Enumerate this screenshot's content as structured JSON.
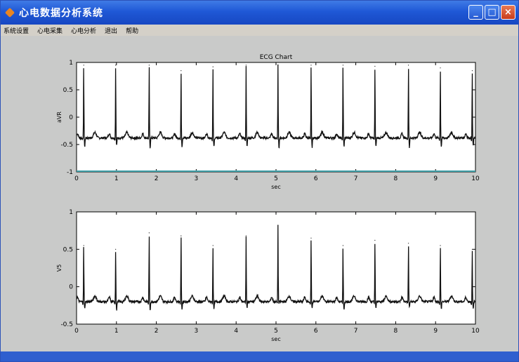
{
  "window": {
    "title": "心电数据分析系统",
    "app_icon": "app-icon",
    "buttons": {
      "minimize": "_",
      "maximize": "□",
      "close": "×"
    }
  },
  "menu": {
    "items": [
      "系统设置",
      "心电采集",
      "心电分析",
      "退出",
      "帮助"
    ]
  },
  "colors": {
    "titlebar": "#1f58d6",
    "window_bg": "#c9cac9",
    "plot_bg": "#ffffff",
    "trace": "#111111",
    "baseline": "#3fa0a8"
  },
  "chart_data": [
    {
      "type": "line",
      "title": "ECG Chart",
      "xlabel": "sec",
      "ylabel": "aVR",
      "xlim": [
        0,
        10
      ],
      "ylim": [
        -1,
        1
      ],
      "xticks": [
        "0",
        "1",
        "2",
        "3",
        "4",
        "5",
        "6",
        "7",
        "8",
        "9",
        "10"
      ],
      "yticks": [
        "1",
        "0.5",
        "0",
        "-0.5",
        "-1"
      ],
      "grid": false,
      "baseline_value": -1,
      "series": [
        {
          "beat_times": [
            0.18,
            0.98,
            1.82,
            2.62,
            3.42,
            4.25,
            5.05,
            5.88,
            6.68,
            7.48,
            8.32,
            9.12,
            9.92
          ],
          "r_peaks": [
            0.95,
            0.95,
            0.95,
            0.85,
            0.92,
            0.95,
            0.95,
            0.95,
            0.95,
            0.93,
            0.95,
            0.9,
            0.85
          ],
          "s_troughs": [
            -0.55,
            -0.52,
            -0.56,
            -0.54,
            -0.55,
            -0.55,
            -0.56,
            -0.55,
            -0.55,
            -0.55,
            -0.56,
            -0.54,
            -0.52
          ],
          "baseline_level": -0.38
        }
      ]
    },
    {
      "type": "line",
      "title": "",
      "xlabel": "sec",
      "ylabel": "V5",
      "xlim": [
        0,
        10
      ],
      "ylim": [
        -0.5,
        1
      ],
      "xticks": [
        "0",
        "1",
        "2",
        "3",
        "4",
        "5",
        "6",
        "7",
        "8",
        "9",
        "10"
      ],
      "yticks": [
        "1",
        "0.5",
        "0",
        "-0.5"
      ],
      "grid": false,
      "series": [
        {
          "beat_times": [
            0.18,
            0.98,
            1.82,
            2.62,
            3.42,
            4.25,
            5.05,
            5.88,
            6.68,
            7.48,
            8.32,
            9.12,
            9.92
          ],
          "r_peaks": [
            0.55,
            0.5,
            0.72,
            0.68,
            0.55,
            0.68,
            0.82,
            0.65,
            0.55,
            0.62,
            0.58,
            0.55,
            0.5
          ],
          "s_troughs": [
            -0.3,
            -0.32,
            -0.32,
            -0.3,
            -0.3,
            -0.28,
            -0.22,
            -0.3,
            -0.32,
            -0.3,
            -0.28,
            -0.3,
            -0.3
          ],
          "baseline_level": -0.2
        }
      ]
    }
  ]
}
